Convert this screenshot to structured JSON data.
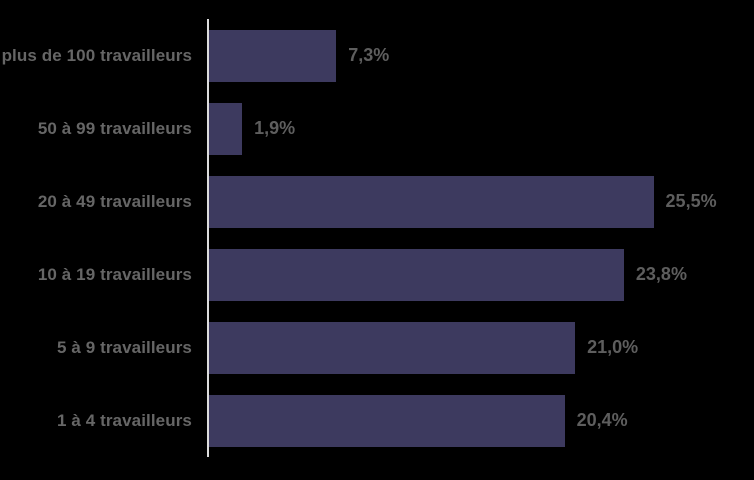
{
  "chart_data": {
    "type": "bar",
    "orientation": "horizontal",
    "title": "",
    "xlabel": "",
    "ylabel": "",
    "categories": [
      "plus de 100 travailleurs",
      "50 à 99 travailleurs",
      "20 à 49 travailleurs",
      "10 à 19 travailleurs",
      "5 à 9 travailleurs",
      "1 à 4 travailleurs"
    ],
    "values": [
      7.3,
      1.9,
      25.5,
      23.8,
      21.0,
      20.4
    ],
    "value_labels": [
      "7,3%",
      "1,9%",
      "25,5%",
      "23,8%",
      "21,0%",
      "20,4%"
    ],
    "xlim": [
      0,
      30
    ],
    "grid": false,
    "legend": false,
    "colors": {
      "background": "#000000",
      "bar": "#3D3A5F",
      "category_label": "#666666",
      "value_label": "#5E5E5E",
      "axis_line": "#DCDCDC"
    }
  }
}
